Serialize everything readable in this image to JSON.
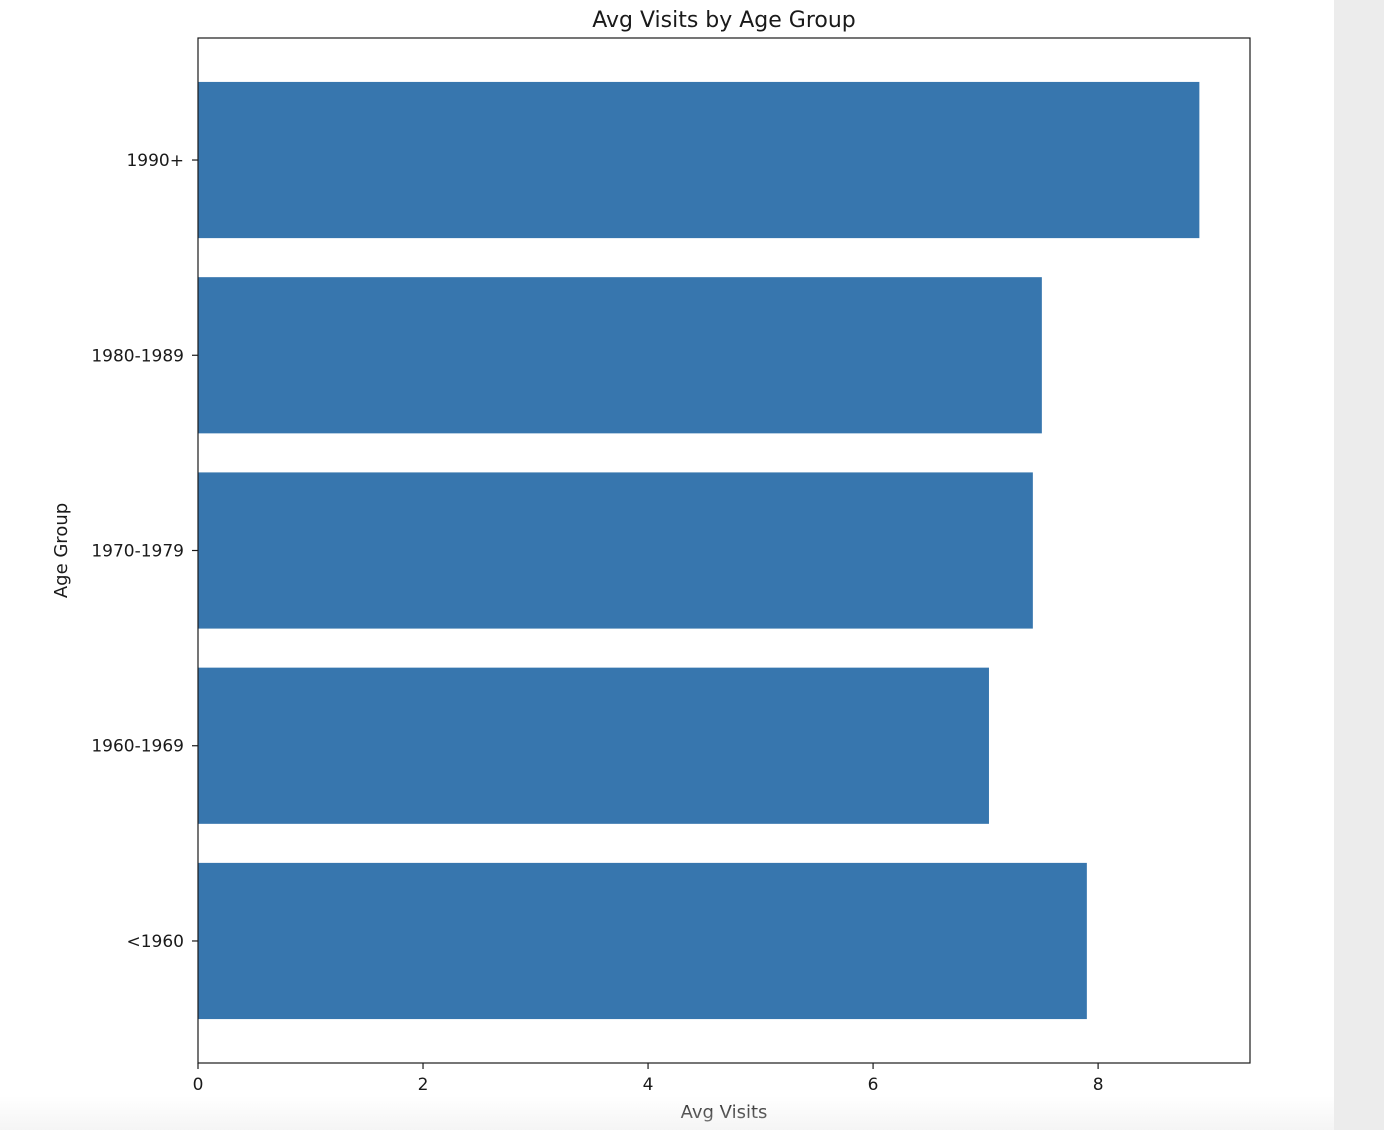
{
  "chart_data": {
    "type": "bar",
    "orientation": "horizontal",
    "title": "Avg Visits by Age Group",
    "xlabel": "Avg Visits",
    "ylabel": "Age Group",
    "categories": [
      "<1960",
      "1960-1969",
      "1970-1979",
      "1980-1989",
      "1990+"
    ],
    "values": [
      7.9,
      7.03,
      7.42,
      7.5,
      8.9
    ],
    "xlim": [
      0,
      9.35
    ],
    "xticks": [
      0,
      2,
      4,
      6,
      8
    ],
    "bar_color": "#3776ae",
    "grid": false,
    "legend": "none"
  }
}
